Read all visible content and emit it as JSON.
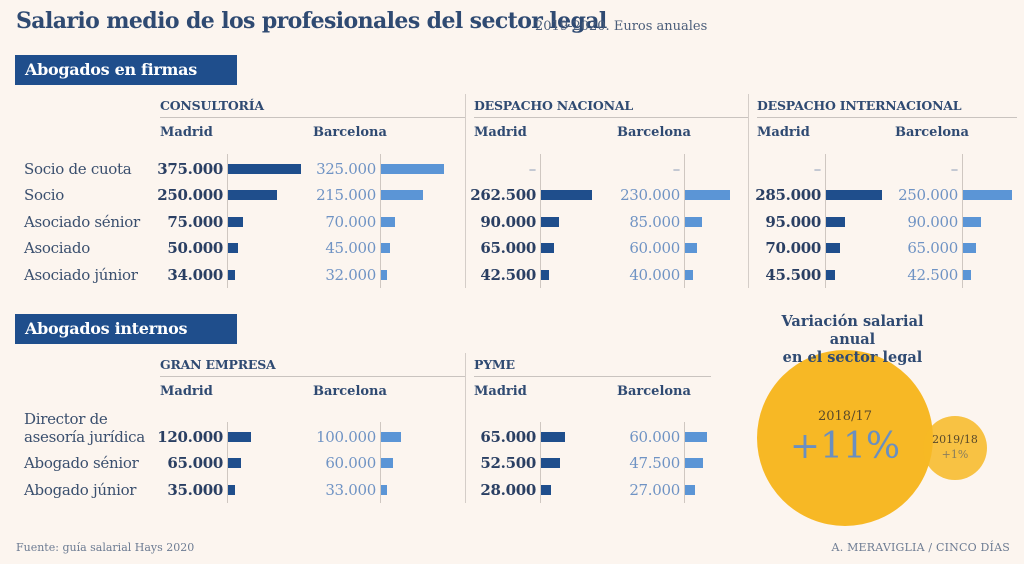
{
  "header": {
    "title": "Salario medio de los profesionales del sector legal",
    "subtitle": "2019-2020. Euros anuales"
  },
  "footer": {
    "source": "Fuente: guía salarial Hays 2020",
    "credit": "A. MERAVIGLIA / CINCO DÍAS"
  },
  "colors": {
    "background": "#fcf5ef",
    "band": "#1f4e8c",
    "madrid_bar": "#1f4e8c",
    "barcelona_bar": "#5b95d6",
    "bubble": "#f7b825"
  },
  "chart_data": [
    {
      "type": "bar",
      "orientation": "horizontal",
      "title": "Abogados en firmas",
      "units": "euros anuales",
      "categories": [
        "Socio de cuota",
        "Socio",
        "Asociado sénior",
        "Asociado",
        "Asociado júnior"
      ],
      "groups": [
        {
          "name": "CONSULTORÍA",
          "series": [
            {
              "name": "Madrid",
              "values": [
                375000,
                250000,
                75000,
                50000,
                34000
              ],
              "labels": [
                "375.000",
                "250.000",
                "75.000",
                "50.000",
                "34.000"
              ]
            },
            {
              "name": "Barcelona",
              "values": [
                325000,
                215000,
                70000,
                45000,
                32000
              ],
              "labels": [
                "325.000",
                "215.000",
                "70.000",
                "45.000",
                "32.000"
              ]
            }
          ]
        },
        {
          "name": "DESPACHO NACIONAL",
          "series": [
            {
              "name": "Madrid",
              "values": [
                null,
                262500,
                90000,
                65000,
                42500
              ],
              "labels": [
                "–",
                "262.500",
                "90.000",
                "65.000",
                "42.500"
              ]
            },
            {
              "name": "Barcelona",
              "values": [
                null,
                230000,
                85000,
                60000,
                40000
              ],
              "labels": [
                "–",
                "230.000",
                "85.000",
                "60.000",
                "40.000"
              ]
            }
          ]
        },
        {
          "name": "DESPACHO INTERNACIONAL",
          "series": [
            {
              "name": "Madrid",
              "values": [
                null,
                285000,
                95000,
                70000,
                45500
              ],
              "labels": [
                "–",
                "285.000",
                "95.000",
                "70.000",
                "45.500"
              ]
            },
            {
              "name": "Barcelona",
              "values": [
                null,
                250000,
                90000,
                65000,
                42500
              ],
              "labels": [
                "–",
                "250.000",
                "90.000",
                "65.000",
                "42.500"
              ]
            }
          ]
        }
      ]
    },
    {
      "type": "bar",
      "orientation": "horizontal",
      "title": "Abogados internos",
      "units": "euros anuales",
      "categories": [
        "Director de asesoría jurídica",
        "Abogado sénior",
        "Abogado júnior"
      ],
      "category_lines": [
        [
          "Director de",
          "asesoría jurídica"
        ],
        [
          "Abogado sénior"
        ],
        [
          "Abogado júnior"
        ]
      ],
      "groups": [
        {
          "name": "GRAN EMPRESA",
          "series": [
            {
              "name": "Madrid",
              "values": [
                120000,
                65000,
                35000
              ],
              "labels": [
                "120.000",
                "65.000",
                "35.000"
              ]
            },
            {
              "name": "Barcelona",
              "values": [
                100000,
                60000,
                33000
              ],
              "labels": [
                "100.000",
                "60.000",
                "33.000"
              ]
            }
          ]
        },
        {
          "name": "PYME",
          "series": [
            {
              "name": "Madrid",
              "values": [
                65000,
                52500,
                28000
              ],
              "labels": [
                "65.000",
                "52.500",
                "28.000"
              ]
            },
            {
              "name": "Barcelona",
              "values": [
                60000,
                47500,
                27000
              ],
              "labels": [
                "60.000",
                "47.500",
                "27.000"
              ]
            }
          ]
        }
      ]
    },
    {
      "type": "bubble",
      "title": "Variación salarial anual en el sector legal",
      "title_lines": [
        "Variación salarial anual",
        "en el sector legal"
      ],
      "points": [
        {
          "period": "2018/17",
          "value": 11,
          "label": "+11%"
        },
        {
          "period": "2019/18",
          "value": 1,
          "label": "+1%"
        }
      ]
    }
  ]
}
